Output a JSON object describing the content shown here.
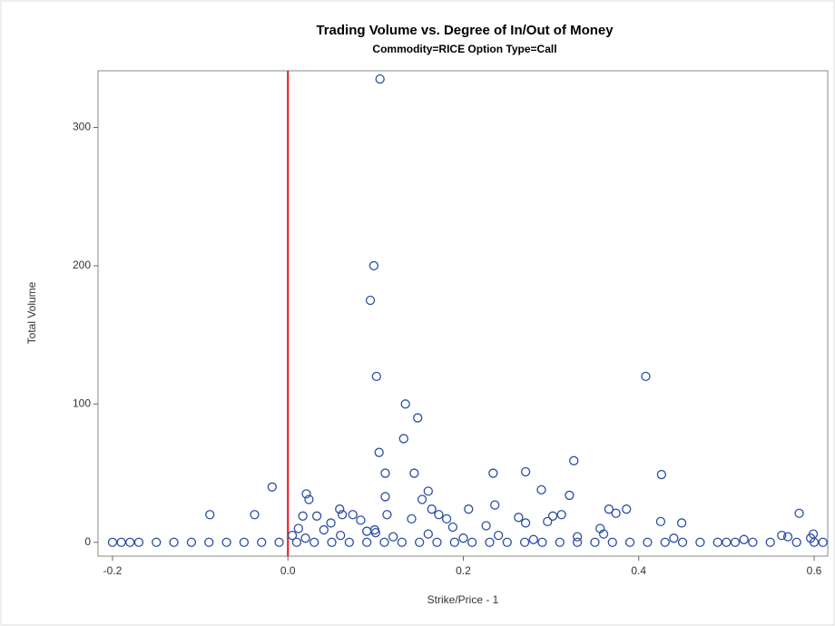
{
  "chart_data": {
    "type": "scatter",
    "title": "Trading Volume vs. Degree of In/Out of Money",
    "subtitle": "Commodity=RICE Option Type=Call",
    "x_label": "Strike/Price - 1",
    "y_label": "Total Volume",
    "color": "#2c4fa3",
    "reference_line": {
      "x": 0,
      "color": "#e8151b"
    },
    "xlim": [
      -0.2165,
      0.6155
    ],
    "ylim": [
      -10,
      341
    ],
    "xticks": [
      -0.2,
      {
        "value": 0,
        "label": "0.0"
      },
      0.2,
      0.4,
      0.6
    ],
    "yticks": [
      0,
      100,
      200,
      300
    ],
    "x": [
      0.105,
      0.098,
      0.094,
      0.101,
      0.408,
      0.134,
      0.148,
      0.132,
      0.104,
      0.111,
      0.144,
      0.234,
      0.271,
      0.326,
      0.426,
      -0.018,
      0.583,
      -0.089,
      -0.038,
      0.021,
      0.024,
      0.111,
      0.16,
      0.153,
      0.289,
      0.321,
      0.206,
      0.236,
      0.059,
      0.062,
      0.017,
      0.033,
      0.074,
      0.083,
      0.113,
      0.141,
      0.164,
      0.172,
      0.181,
      0.263,
      0.271,
      0.296,
      0.302,
      0.312,
      0.366,
      0.374,
      0.386,
      0.425,
      0.449,
      0.356,
      0.188,
      0.049,
      0.012,
      0.041,
      0.099,
      0.226,
      0.563,
      0.599,
      0.596,
      -0.2,
      -0.19,
      -0.18,
      -0.17,
      -0.15,
      -0.13,
      -0.11,
      -0.09,
      -0.07,
      -0.05,
      -0.03,
      -0.01,
      0.01,
      0.03,
      0.05,
      0.07,
      0.09,
      0.11,
      0.13,
      0.15,
      0.17,
      0.19,
      0.21,
      0.23,
      0.25,
      0.27,
      0.29,
      0.31,
      0.33,
      0.35,
      0.37,
      0.39,
      0.41,
      0.43,
      0.45,
      0.47,
      0.49,
      0.5,
      0.51,
      0.53,
      0.55,
      0.58,
      0.6,
      0.61,
      0.02,
      0.06,
      0.09,
      0.12,
      0.16,
      0.2,
      0.24,
      0.28,
      0.33,
      0.36,
      0.44,
      0.52,
      0.57,
      0.005,
      0.1
    ],
    "values": [
      335,
      200,
      175,
      120,
      120,
      100,
      90,
      75,
      65,
      50,
      50,
      50,
      51,
      59,
      49,
      40,
      21,
      20,
      20,
      35,
      31,
      33,
      37,
      31,
      38,
      34,
      24,
      27,
      24,
      20,
      19,
      19,
      20,
      16,
      20,
      17,
      24,
      20,
      17,
      18,
      14,
      15,
      19,
      20,
      24,
      21,
      24,
      15,
      14,
      10,
      11,
      14,
      10,
      9,
      9,
      12,
      5,
      6,
      3,
      0,
      0,
      0,
      0,
      0,
      0,
      0,
      0,
      0,
      0,
      0,
      0,
      0,
      0,
      0,
      0,
      0,
      0,
      0,
      0,
      0,
      0,
      0,
      0,
      0,
      0,
      0,
      0,
      0,
      0,
      0,
      0,
      0,
      0,
      0,
      0,
      0,
      0,
      0,
      0,
      0,
      0,
      0,
      0,
      3,
      5,
      8,
      4,
      6,
      3,
      5,
      2,
      4,
      6,
      3,
      2,
      4,
      5,
      7
    ]
  }
}
